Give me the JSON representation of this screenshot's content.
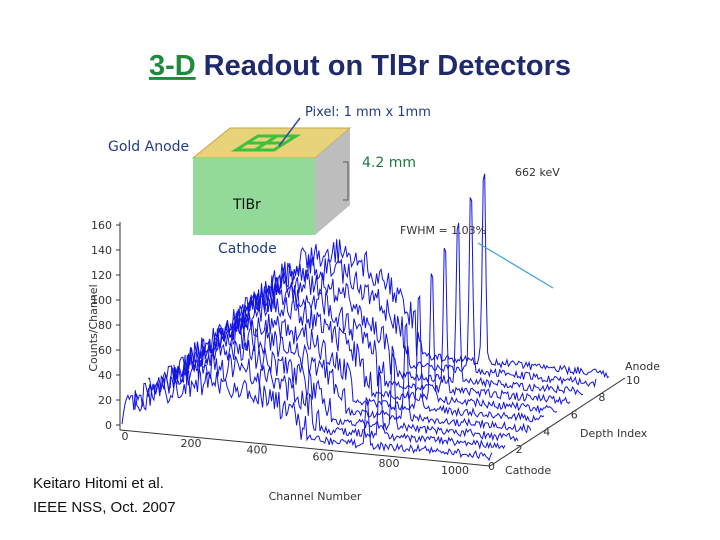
{
  "slide": {
    "title": {
      "highlight": "3-D",
      "rest": "Readout on TlBr Detectors"
    },
    "detector": {
      "pixel_label": "Pixel: 1 mm x 1mm",
      "anode_label": "Gold Anode",
      "thickness_label": "4.2 mm",
      "material_label": "TlBr",
      "cathode_label": "Cathode"
    },
    "plot": {
      "y_axis_label": "Counts/Channel",
      "y_tick_labels": [
        "160",
        "140",
        "120",
        "100",
        "80",
        "60",
        "40",
        "20",
        "0"
      ],
      "x_axis_label": "Channel Number",
      "x_tick_labels": [
        "0",
        "200",
        "400",
        "600",
        "800",
        "1000"
      ],
      "depth_axis_label": "Depth Index",
      "depth_tick_labels": [
        "0",
        "2",
        "4",
        "6",
        "8",
        "10"
      ],
      "depth_anode_label": "Anode",
      "depth_cathode_label": "Cathode",
      "peak_label": "662 keV",
      "fwhm_label": "FWHM = 1.03%"
    },
    "citation": [
      "Keitaro Hitomi et al.",
      "IEEE NSS, Oct. 2007"
    ]
  }
}
